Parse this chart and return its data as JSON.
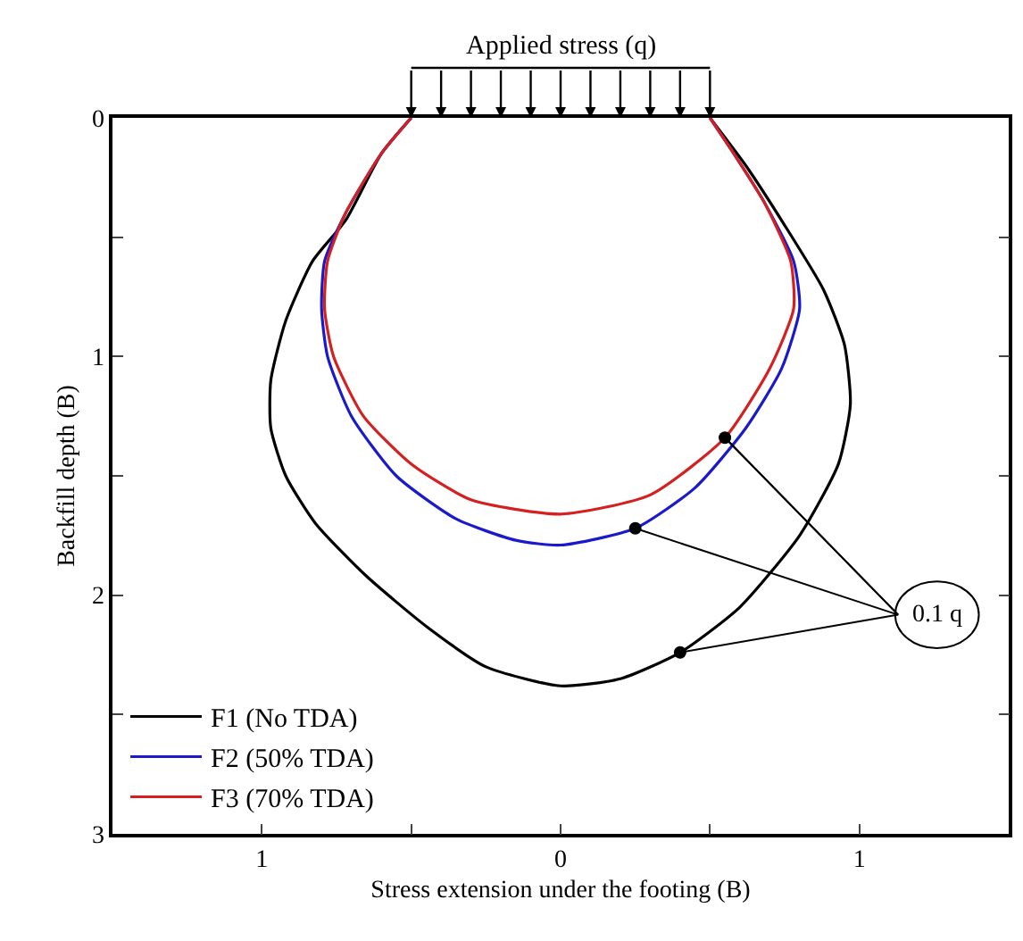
{
  "chart_data": {
    "type": "line",
    "title": "Applied stress (q)",
    "xlabel": "Stress extension under the footing (B)",
    "ylabel": "Backfill depth (B)",
    "xlim": [
      -1.5,
      1.5
    ],
    "xticks": [
      {
        "value": -1,
        "label": "1"
      },
      {
        "value": -0.5,
        "label": null
      },
      0,
      {
        "value": 0.5,
        "label": null
      },
      1
    ],
    "ylim": [
      3,
      0
    ],
    "yticks": [
      0,
      {
        "value": 0.5,
        "label": null
      },
      1,
      {
        "value": 1.5,
        "label": null
      },
      2,
      {
        "value": 2.5,
        "label": null
      },
      3
    ],
    "legend": "bottom left",
    "marker": "none",
    "line_style": "solid",
    "series": [
      {
        "name": "F1 (No TDA)",
        "color": "#000000",
        "x": [
          -0.5,
          -0.6,
          -0.72,
          -0.83,
          -0.92,
          -0.97,
          -0.97,
          -0.92,
          -0.82,
          -0.65,
          -0.45,
          -0.25,
          0,
          0.2,
          0.4,
          0.6,
          0.8,
          0.93,
          0.97,
          0.95,
          0.88,
          0.75,
          0.62,
          0.5
        ],
        "values": [
          0,
          0.15,
          0.43,
          0.6,
          0.85,
          1.1,
          1.3,
          1.5,
          1.7,
          1.92,
          2.13,
          2.3,
          2.38,
          2.35,
          2.24,
          2.05,
          1.75,
          1.45,
          1.2,
          0.95,
          0.72,
          0.45,
          0.2,
          0
        ]
      },
      {
        "name": "F2 (50% TDA)",
        "color": "#1a1acc",
        "x": [
          -0.5,
          -0.6,
          -0.72,
          -0.79,
          -0.8,
          -0.78,
          -0.7,
          -0.55,
          -0.35,
          -0.15,
          0,
          0.25,
          0.45,
          0.62,
          0.74,
          0.8,
          0.78,
          0.68,
          0.58,
          0.5
        ],
        "values": [
          0,
          0.15,
          0.4,
          0.6,
          0.8,
          1.0,
          1.25,
          1.5,
          1.68,
          1.77,
          1.79,
          1.72,
          1.55,
          1.3,
          1.05,
          0.8,
          0.6,
          0.35,
          0.15,
          0
        ]
      },
      {
        "name": "F3 (70% TDA)",
        "color": "#d42020",
        "x": [
          -0.5,
          -0.6,
          -0.72,
          -0.78,
          -0.79,
          -0.76,
          -0.66,
          -0.5,
          -0.3,
          0,
          0.3,
          0.55,
          0.7,
          0.78,
          0.77,
          0.68,
          0.58,
          0.5
        ],
        "values": [
          0,
          0.15,
          0.4,
          0.6,
          0.8,
          1.0,
          1.25,
          1.45,
          1.6,
          1.66,
          1.58,
          1.34,
          1.05,
          0.8,
          0.6,
          0.35,
          0.15,
          0
        ]
      },
      {
        "type": "scatter",
        "marker": "circle",
        "color": "#000000",
        "x": [
          0.55,
          0.25,
          0.4
        ],
        "values": [
          1.34,
          1.72,
          2.24
        ]
      }
    ],
    "annotations": [
      {
        "text": "0.1 q",
        "x": 0.55,
        "y": 1.34
      }
    ]
  }
}
